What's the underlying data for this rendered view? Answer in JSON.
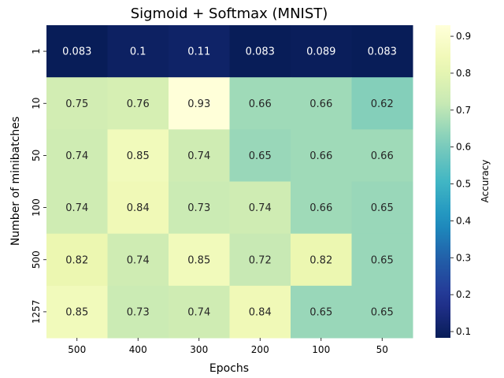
{
  "chart_data": {
    "type": "heatmap",
    "title": "Sigmoid + Softmax (MNIST)",
    "xlabel": "Epochs",
    "ylabel": "Number of minibatches",
    "x_categories": [
      "500",
      "400",
      "300",
      "200",
      "100",
      "50"
    ],
    "y_categories": [
      "1",
      "10",
      "50",
      "100",
      "500",
      "1257"
    ],
    "values": [
      [
        0.083,
        0.1,
        0.11,
        0.083,
        0.089,
        0.083
      ],
      [
        0.75,
        0.76,
        0.93,
        0.66,
        0.66,
        0.62
      ],
      [
        0.74,
        0.85,
        0.74,
        0.65,
        0.66,
        0.66
      ],
      [
        0.74,
        0.84,
        0.73,
        0.74,
        0.66,
        0.65
      ],
      [
        0.82,
        0.74,
        0.85,
        0.72,
        0.82,
        0.65
      ],
      [
        0.85,
        0.73,
        0.74,
        0.84,
        0.65,
        0.65
      ]
    ],
    "colorbar": {
      "label": "Accuracy",
      "range": [
        0.083,
        0.93
      ],
      "ticks": [
        "0.1",
        "0.2",
        "0.3",
        "0.4",
        "0.5",
        "0.6",
        "0.7",
        "0.8",
        "0.9"
      ]
    },
    "colormap": "YlGnBu",
    "grid": false
  }
}
